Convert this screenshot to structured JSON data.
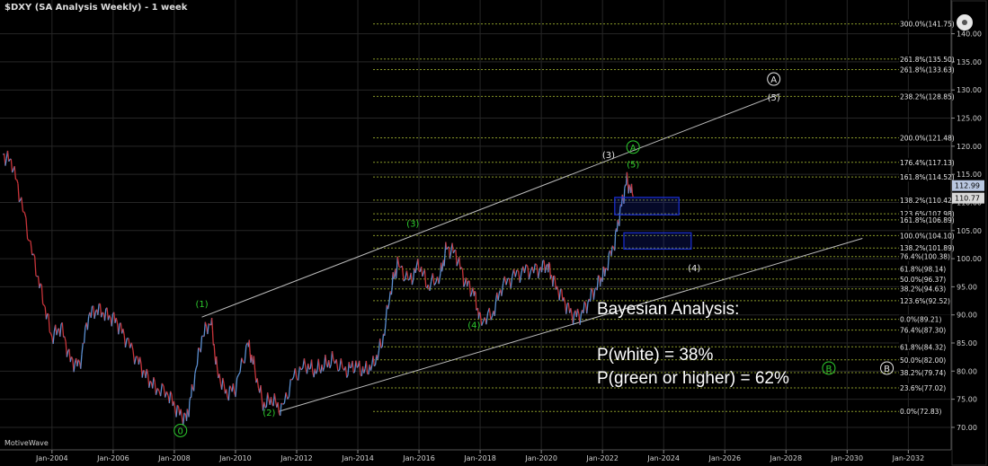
{
  "window": {
    "title": "$DXY (SA Analysis Weekly) - 1 week",
    "brand": "MotiveWave"
  },
  "annotation": {
    "heading": "Bayesian Analysis:",
    "line1": "P(white) = 38%",
    "line2": "P(green or higher) = 62%"
  },
  "colors": {
    "background": "#000000",
    "grid": "#262626",
    "price_up": "#5b8fd0",
    "price_down": "#c8343a",
    "fib": "#8a9a2a",
    "green_label": "#2ecc2e",
    "white_label": "#e6e6e6",
    "channel": "#bdbdbd",
    "box": "#1a2fd6"
  },
  "chart_data": {
    "type": "line",
    "title": "$DXY (SA Analysis Weekly) - 1 week",
    "xlim": [
      2002.3,
      2033.4
    ],
    "ylim": [
      66,
      146
    ],
    "x_ticks": [
      "Jan-2004",
      "Jan-2006",
      "Jan-2008",
      "Jan-2010",
      "Jan-2012",
      "Jan-2014",
      "Jan-2016",
      "Jan-2018",
      "Jan-2020",
      "Jan-2022",
      "Jan-2024",
      "Jan-2026",
      "Jan-2028",
      "Jan-2030",
      "Jan-2032"
    ],
    "y_ticks": [
      70,
      75,
      80,
      85,
      90,
      95,
      100,
      105,
      110,
      115,
      120,
      125,
      130,
      135,
      140
    ],
    "series": [
      {
        "x": [
          2002.4,
          2002.7,
          2003.0,
          2003.4,
          2003.7,
          2004.0,
          2004.3,
          2004.6,
          2004.9,
          2005.2,
          2005.5,
          2005.8,
          2006.1,
          2006.4,
          2006.8,
          2007.1,
          2007.4,
          2007.8,
          2008.1,
          2008.4,
          2008.6,
          2008.9,
          2009.2,
          2009.4,
          2009.7,
          2010.0,
          2010.4,
          2010.6,
          2010.9,
          2011.2,
          2011.5,
          2011.9,
          2012.3,
          2012.6,
          2012.9,
          2013.2,
          2013.6,
          2013.9,
          2014.2,
          2014.5,
          2014.8,
          2015.1,
          2015.3,
          2015.7,
          2016.0,
          2016.3,
          2016.7,
          2016.9,
          2017.2,
          2017.5,
          2017.8,
          2018.0,
          2018.4,
          2018.7,
          2019.1,
          2019.5,
          2019.9,
          2020.2,
          2020.4,
          2020.7,
          2021.0,
          2021.3,
          2021.6,
          2021.9,
          2022.1,
          2022.4,
          2022.6,
          2022.8,
          2023.0
        ],
        "values": [
          118.5,
          117,
          110,
          100,
          93,
          86,
          88,
          82,
          81,
          90,
          91,
          90,
          89,
          86,
          82,
          79,
          77,
          76,
          73,
          71.5,
          77,
          86,
          89,
          80,
          76,
          77,
          85,
          81,
          74,
          75,
          73,
          79,
          81,
          80,
          81,
          82,
          80,
          81,
          80,
          81,
          85,
          95,
          99,
          96,
          99,
          95,
          97,
          102,
          101,
          96,
          94,
          89,
          90,
          95,
          97,
          98,
          98,
          99,
          96,
          93,
          90,
          90,
          93,
          96,
          98,
          103,
          109,
          114,
          111
        ]
      }
    ],
    "fib_levels": [
      {
        "label": "300.0%(141.75)",
        "value": 141.75
      },
      {
        "label": "261.8%(135.50)",
        "value": 135.5
      },
      {
        "label": "261.8%(133.63)",
        "value": 133.63
      },
      {
        "label": "238.2%(128.85)",
        "value": 128.85
      },
      {
        "label": "200.0%(121.48)",
        "value": 121.48
      },
      {
        "label": "176.4%(117.13)",
        "value": 117.13
      },
      {
        "label": "161.8%(114.52)",
        "value": 114.52
      },
      {
        "label": "138.2%(110.42)",
        "value": 110.42
      },
      {
        "label": "123.6%(107.98)",
        "value": 107.98
      },
      {
        "label": "161.8%(106.89)",
        "value": 106.89
      },
      {
        "label": "100.0%(104.10)",
        "value": 104.1
      },
      {
        "label": "138.2%(101.89)",
        "value": 101.89
      },
      {
        "label": "76.4%(100.38)",
        "value": 100.38
      },
      {
        "label": "61.8%(98.14)",
        "value": 98.14
      },
      {
        "label": "50.0%(96.37)",
        "value": 96.37
      },
      {
        "label": "38.2%(94.63)",
        "value": 94.63
      },
      {
        "label": "123.6%(92.52)",
        "value": 92.52
      },
      {
        "label": "0.0%(89.21)",
        "value": 89.21
      },
      {
        "label": "76.4%(87.30)",
        "value": 87.3
      },
      {
        "label": "61.8%(84.32)",
        "value": 84.32
      },
      {
        "label": "50.0%(82.00)",
        "value": 82.0
      },
      {
        "label": "38.2%(79.74)",
        "value": 79.74
      },
      {
        "label": "23.6%(77.02)",
        "value": 77.02
      },
      {
        "label": "0.0%(72.83)",
        "value": 72.83
      }
    ],
    "price_tags": [
      {
        "label": "112.99",
        "value": 112.99
      },
      {
        "label": "110.77",
        "value": 110.77
      }
    ],
    "wave_labels": [
      {
        "text": "0",
        "x": 2008.2,
        "y": 68.8,
        "color": "green",
        "circled": true
      },
      {
        "text": "(1)",
        "x": 2008.9,
        "y": 91.4,
        "color": "green"
      },
      {
        "text": "(2)",
        "x": 2011.1,
        "y": 72.1,
        "color": "green"
      },
      {
        "text": "(3)",
        "x": 2015.8,
        "y": 105.7,
        "color": "green"
      },
      {
        "text": "(4)",
        "x": 2017.8,
        "y": 87.6,
        "color": "green"
      },
      {
        "text": "(5)",
        "x": 2023.0,
        "y": 116.2,
        "color": "green"
      },
      {
        "text": "A",
        "x": 2023.0,
        "y": 119.2,
        "color": "green",
        "circled": true
      },
      {
        "text": "B",
        "x": 2029.4,
        "y": 79.9,
        "color": "green",
        "circled": true
      },
      {
        "text": "(3)",
        "x": 2022.2,
        "y": 117.9,
        "color": "white"
      },
      {
        "text": "(4)",
        "x": 2025.0,
        "y": 97.8,
        "color": "white"
      },
      {
        "text": "(5)",
        "x": 2027.6,
        "y": 128.1,
        "color": "white"
      },
      {
        "text": "A",
        "x": 2027.6,
        "y": 131.3,
        "color": "white",
        "circled": true
      },
      {
        "text": "B",
        "x": 2031.3,
        "y": 79.9,
        "color": "white",
        "circled": true
      }
    ],
    "channel": [
      {
        "from": [
          2008.9,
          89.6
        ],
        "to": [
          2027.8,
          129.3
        ]
      },
      {
        "from": [
          2011.4,
          72.8
        ],
        "to": [
          2030.5,
          103.6
        ]
      }
    ],
    "target_boxes": [
      {
        "x0": 2022.4,
        "x1": 2024.5,
        "y0": 107.8,
        "y1": 110.9
      },
      {
        "x0": 2022.7,
        "x1": 2024.9,
        "y0": 101.7,
        "y1": 104.6
      }
    ]
  }
}
